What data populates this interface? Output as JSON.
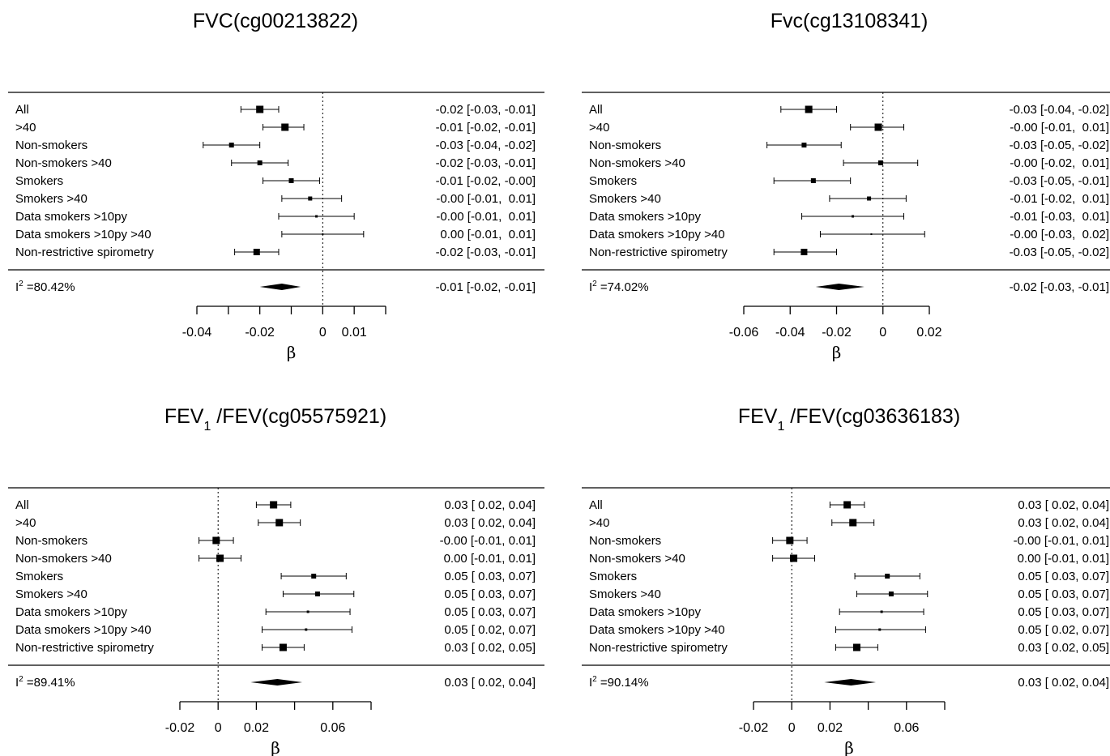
{
  "chart_data": [
    {
      "type": "forest",
      "title": "FVC(cg00213822)",
      "xlabel": "β",
      "xlim": [
        -0.04,
        0.02
      ],
      "xticks": [
        -0.04,
        -0.02,
        0,
        0.01
      ],
      "rows": [
        {
          "label": "All",
          "est": -0.02,
          "lo": -0.026,
          "hi": -0.014,
          "w": 9,
          "ci_text": "-0.02 [-0.03, -0.01]"
        },
        {
          "label": ">40",
          "est": -0.012,
          "lo": -0.019,
          "hi": -0.006,
          "w": 9,
          "ci_text": "-0.01 [-0.02, -0.01]"
        },
        {
          "label": "Non-smokers",
          "est": -0.029,
          "lo": -0.038,
          "hi": -0.02,
          "w": 6,
          "ci_text": "-0.03 [-0.04, -0.02]"
        },
        {
          "label": "Non-smokers >40",
          "est": -0.02,
          "lo": -0.029,
          "hi": -0.011,
          "w": 6,
          "ci_text": "-0.02 [-0.03, -0.01]"
        },
        {
          "label": "Smokers",
          "est": -0.01,
          "lo": -0.019,
          "hi": -0.001,
          "w": 6,
          "ci_text": "-0.01 [-0.02, -0.00]"
        },
        {
          "label": "Smokers >40",
          "est": -0.004,
          "lo": -0.013,
          "hi": 0.006,
          "w": 5,
          "ci_text": "-0.00 [-0.01,  0.01]"
        },
        {
          "label": "Data smokers >10py",
          "est": -0.002,
          "lo": -0.014,
          "hi": 0.01,
          "w": 3,
          "ci_text": "-0.00 [-0.01,  0.01]"
        },
        {
          "label": "Data smokers >10py >40",
          "est": 0.0,
          "lo": -0.013,
          "hi": 0.013,
          "w": 2,
          "ci_text": "0.00 [-0.01,  0.01]"
        },
        {
          "label": "Non-restrictive spirometry",
          "est": -0.021,
          "lo": -0.028,
          "hi": -0.014,
          "w": 8,
          "ci_text": "-0.02 [-0.03, -0.01]"
        }
      ],
      "summary": {
        "label": "I",
        "sup": "2",
        "value": " =80.42%",
        "est": -0.013,
        "lo": -0.02,
        "hi": -0.007,
        "ci_text": "-0.01 [-0.02, -0.01]"
      }
    },
    {
      "type": "forest",
      "title": "Fvc(cg13108341)",
      "xlabel": "β",
      "xlim": [
        -0.06,
        0.02
      ],
      "xticks": [
        -0.06,
        -0.04,
        -0.02,
        0,
        0.02
      ],
      "rows": [
        {
          "label": "All",
          "est": -0.032,
          "lo": -0.044,
          "hi": -0.02,
          "w": 9,
          "ci_text": "-0.03 [-0.04, -0.02]"
        },
        {
          "label": ">40",
          "est": -0.002,
          "lo": -0.014,
          "hi": 0.009,
          "w": 9,
          "ci_text": "-0.00 [-0.01,  0.01]"
        },
        {
          "label": "Non-smokers",
          "est": -0.034,
          "lo": -0.05,
          "hi": -0.018,
          "w": 6,
          "ci_text": "-0.03 [-0.05, -0.02]"
        },
        {
          "label": "Non-smokers >40",
          "est": -0.001,
          "lo": -0.017,
          "hi": 0.015,
          "w": 6,
          "ci_text": "-0.00 [-0.02,  0.01]"
        },
        {
          "label": "Smokers",
          "est": -0.03,
          "lo": -0.047,
          "hi": -0.014,
          "w": 6,
          "ci_text": "-0.03 [-0.05, -0.01]"
        },
        {
          "label": "Smokers >40",
          "est": -0.006,
          "lo": -0.023,
          "hi": 0.01,
          "w": 5,
          "ci_text": "-0.01 [-0.02,  0.01]"
        },
        {
          "label": "Data smokers >10py",
          "est": -0.013,
          "lo": -0.035,
          "hi": 0.009,
          "w": 3,
          "ci_text": "-0.01 [-0.03,  0.01]"
        },
        {
          "label": "Data smokers >10py >40",
          "est": -0.005,
          "lo": -0.027,
          "hi": 0.018,
          "w": 2,
          "ci_text": "-0.00 [-0.03,  0.02]"
        },
        {
          "label": "Non-restrictive spirometry",
          "est": -0.034,
          "lo": -0.047,
          "hi": -0.02,
          "w": 8,
          "ci_text": "-0.03 [-0.05, -0.02]"
        }
      ],
      "summary": {
        "label": "I",
        "sup": "2",
        "value": " =74.02%",
        "est": -0.019,
        "lo": -0.029,
        "hi": -0.008,
        "ci_text": "-0.02 [-0.03, -0.01]"
      }
    },
    {
      "type": "forest",
      "title_parts": {
        "main": "FEV",
        "sub": "1",
        "rest": " /FEV(cg05575921)"
      },
      "xlabel": "β",
      "xlim": [
        -0.02,
        0.08
      ],
      "xticks": [
        -0.02,
        0,
        0.02,
        0.06
      ],
      "rows": [
        {
          "label": "All",
          "est": 0.029,
          "lo": 0.02,
          "hi": 0.038,
          "w": 9,
          "ci_text": "0.03 [ 0.02, 0.04]"
        },
        {
          "label": ">40",
          "est": 0.032,
          "lo": 0.021,
          "hi": 0.043,
          "w": 9,
          "ci_text": "0.03 [ 0.02, 0.04]"
        },
        {
          "label": "Non-smokers",
          "est": -0.001,
          "lo": -0.01,
          "hi": 0.008,
          "w": 9,
          "ci_text": "-0.00 [-0.01, 0.01]"
        },
        {
          "label": "Non-smokers >40",
          "est": 0.001,
          "lo": -0.01,
          "hi": 0.012,
          "w": 9,
          "ci_text": "0.00 [-0.01, 0.01]"
        },
        {
          "label": "Smokers",
          "est": 0.05,
          "lo": 0.033,
          "hi": 0.067,
          "w": 6,
          "ci_text": "0.05 [ 0.03, 0.07]"
        },
        {
          "label": "Smokers >40",
          "est": 0.052,
          "lo": 0.034,
          "hi": 0.071,
          "w": 6,
          "ci_text": "0.05 [ 0.03, 0.07]"
        },
        {
          "label": "Data smokers >10py",
          "est": 0.047,
          "lo": 0.025,
          "hi": 0.069,
          "w": 3,
          "ci_text": "0.05 [ 0.03, 0.07]"
        },
        {
          "label": "Data smokers >10py >40",
          "est": 0.046,
          "lo": 0.023,
          "hi": 0.07,
          "w": 3,
          "ci_text": "0.05 [ 0.02, 0.07]"
        },
        {
          "label": "Non-restrictive spirometry",
          "est": 0.034,
          "lo": 0.023,
          "hi": 0.045,
          "w": 9,
          "ci_text": "0.03 [ 0.02, 0.05]"
        }
      ],
      "summary": {
        "label": "I",
        "sup": "2",
        "value": " =89.41%",
        "est": 0.031,
        "lo": 0.017,
        "hi": 0.044,
        "ci_text": "0.03 [ 0.02, 0.04]"
      }
    },
    {
      "type": "forest",
      "title_parts": {
        "main": "FEV",
        "sub": "1",
        "rest": " /FEV(cg03636183)"
      },
      "xlabel": "β",
      "xlim": [
        -0.02,
        0.08
      ],
      "xticks": [
        -0.02,
        0,
        0.02,
        0.06
      ],
      "rows": [
        {
          "label": "All",
          "est": 0.029,
          "lo": 0.02,
          "hi": 0.038,
          "w": 9,
          "ci_text": "0.03 [ 0.02, 0.04]"
        },
        {
          "label": ">40",
          "est": 0.032,
          "lo": 0.021,
          "hi": 0.043,
          "w": 9,
          "ci_text": "0.03 [ 0.02, 0.04]"
        },
        {
          "label": "Non-smokers",
          "est": -0.001,
          "lo": -0.01,
          "hi": 0.008,
          "w": 9,
          "ci_text": "-0.00 [-0.01, 0.01]"
        },
        {
          "label": "Non-smokers >40",
          "est": 0.001,
          "lo": -0.01,
          "hi": 0.012,
          "w": 9,
          "ci_text": "0.00 [-0.01, 0.01]"
        },
        {
          "label": "Smokers",
          "est": 0.05,
          "lo": 0.033,
          "hi": 0.067,
          "w": 6,
          "ci_text": "0.05 [ 0.03, 0.07]"
        },
        {
          "label": "Smokers >40",
          "est": 0.052,
          "lo": 0.034,
          "hi": 0.071,
          "w": 6,
          "ci_text": "0.05 [ 0.03, 0.07]"
        },
        {
          "label": "Data smokers >10py",
          "est": 0.047,
          "lo": 0.025,
          "hi": 0.069,
          "w": 3,
          "ci_text": "0.05 [ 0.03, 0.07]"
        },
        {
          "label": "Data smokers >10py >40",
          "est": 0.046,
          "lo": 0.023,
          "hi": 0.07,
          "w": 3,
          "ci_text": "0.05 [ 0.02, 0.07]"
        },
        {
          "label": "Non-restrictive spirometry",
          "est": 0.034,
          "lo": 0.023,
          "hi": 0.045,
          "w": 9,
          "ci_text": "0.03 [ 0.02, 0.05]"
        }
      ],
      "summary": {
        "label": "I",
        "sup": "2",
        "value": " =90.14%",
        "est": 0.031,
        "lo": 0.017,
        "hi": 0.044,
        "ci_text": "0.03 [ 0.02, 0.04]"
      }
    }
  ]
}
